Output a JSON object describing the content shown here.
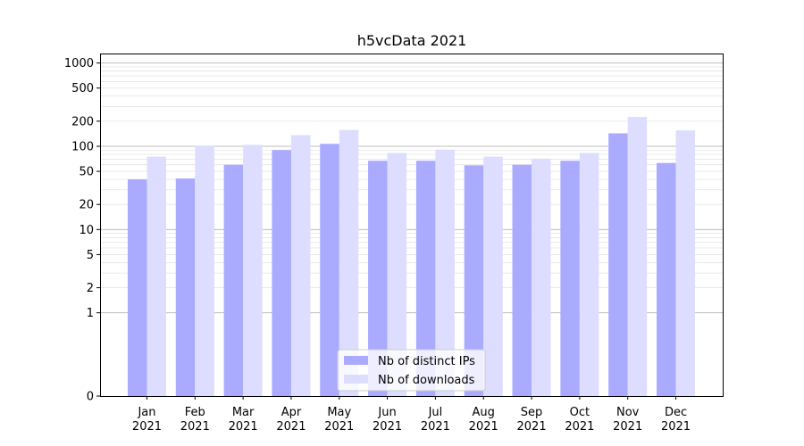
{
  "chart_data": {
    "type": "bar",
    "title": "h5vcData 2021",
    "xlabel": "",
    "ylabel": "",
    "y_scale": "symlog",
    "ylim": [
      0,
      1300
    ],
    "y_ticks": [
      0,
      1,
      2,
      5,
      10,
      20,
      50,
      100,
      200,
      500,
      1000
    ],
    "grid": true,
    "legend_position": "bottom-center",
    "categories": [
      [
        "Jan",
        "2021"
      ],
      [
        "Feb",
        "2021"
      ],
      [
        "Mar",
        "2021"
      ],
      [
        "Apr",
        "2021"
      ],
      [
        "May",
        "2021"
      ],
      [
        "Jun",
        "2021"
      ],
      [
        "Jul",
        "2021"
      ],
      [
        "Aug",
        "2021"
      ],
      [
        "Sep",
        "2021"
      ],
      [
        "Oct",
        "2021"
      ],
      [
        "Nov",
        "2021"
      ],
      [
        "Dec",
        "2021"
      ]
    ],
    "series": [
      {
        "name": "Nb of distinct IPs",
        "color": "#aaaaff",
        "values": [
          40,
          41,
          60,
          90,
          107,
          67,
          67,
          59,
          60,
          67,
          143,
          63
        ]
      },
      {
        "name": "Nb of downloads",
        "color": "#ddddff",
        "values": [
          75,
          102,
          104,
          136,
          157,
          83,
          91,
          75,
          71,
          83,
          225,
          155
        ]
      }
    ]
  }
}
